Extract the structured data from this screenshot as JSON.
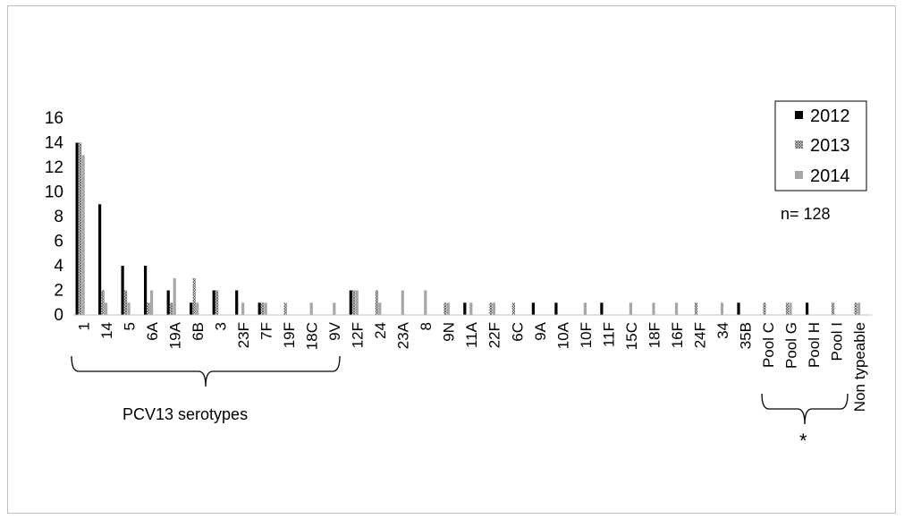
{
  "chart_data": {
    "type": "bar",
    "categories": [
      "1",
      "14",
      "5",
      "6A",
      "19A",
      "6B",
      "3",
      "23F",
      "7F",
      "19F",
      "18C",
      "9V",
      "12F",
      "24",
      "23A",
      "8",
      "9N",
      "11A",
      "22F",
      "6C",
      "9A",
      "10A",
      "10F",
      "11F",
      "15C",
      "18F",
      "16F",
      "24F",
      "34",
      "35B",
      "Pool C",
      "Pool G",
      "Pool H",
      "Pool I",
      "Non typeable"
    ],
    "series": [
      {
        "name": "2012",
        "color": "#000000",
        "pattern": "solid",
        "values": [
          14,
          9,
          4,
          4,
          2,
          1,
          2,
          2,
          1,
          0,
          0,
          0,
          2,
          0,
          0,
          0,
          0,
          1,
          0,
          0,
          1,
          1,
          0,
          1,
          0,
          0,
          0,
          0,
          0,
          1,
          0,
          0,
          1,
          0,
          0
        ]
      },
      {
        "name": "2013",
        "color": "#7f7f7f",
        "pattern": "crosshatch",
        "values": [
          14,
          2,
          2,
          1,
          1,
          3,
          2,
          0,
          1,
          1,
          0,
          0,
          2,
          2,
          0,
          0,
          1,
          0,
          1,
          1,
          0,
          0,
          0,
          0,
          0,
          0,
          0,
          1,
          0,
          0,
          1,
          1,
          0,
          1,
          1
        ]
      },
      {
        "name": "2014",
        "color": "#a6a6a6",
        "pattern": "solid",
        "values": [
          13,
          1,
          1,
          2,
          3,
          1,
          0,
          1,
          1,
          0,
          1,
          1,
          2,
          1,
          2,
          2,
          1,
          1,
          1,
          0,
          0,
          0,
          1,
          0,
          1,
          1,
          1,
          0,
          1,
          0,
          0,
          1,
          0,
          0,
          1
        ]
      }
    ],
    "ylim": [
      0,
      16
    ],
    "yticks": [
      0,
      2,
      4,
      6,
      8,
      10,
      12,
      14,
      16
    ],
    "grid": false,
    "legend": "top-right",
    "annotations": {
      "total": "n= 128",
      "pcv13_group": "PCV13 serotypes",
      "pool_group": "*"
    }
  }
}
